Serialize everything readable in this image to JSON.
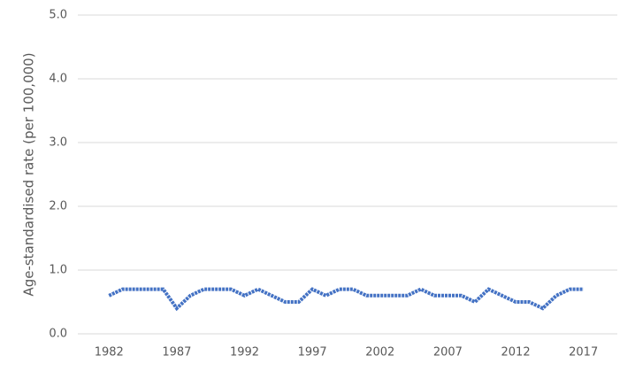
{
  "chart_data": {
    "type": "line",
    "y_label": "Age-standardised rate (per 100,000)",
    "x": [
      1982,
      1983,
      1984,
      1985,
      1986,
      1987,
      1988,
      1989,
      1990,
      1991,
      1992,
      1993,
      1994,
      1995,
      1996,
      1997,
      1998,
      1999,
      2000,
      2001,
      2002,
      2003,
      2004,
      2005,
      2006,
      2007,
      2008,
      2009,
      2010,
      2011,
      2012,
      2013,
      2014,
      2015,
      2016,
      2017
    ],
    "series": [
      {
        "color": "#4472c4",
        "values": [
          0.6,
          0.7,
          0.7,
          0.7,
          0.7,
          0.4,
          0.6,
          0.7,
          0.7,
          0.7,
          0.6,
          0.7,
          0.6,
          0.5,
          0.5,
          0.7,
          0.6,
          0.7,
          0.7,
          0.6,
          0.6,
          0.6,
          0.6,
          0.7,
          0.6,
          0.6,
          0.6,
          0.5,
          0.7,
          0.6,
          0.5,
          0.5,
          0.4,
          0.6,
          0.7,
          0.7
        ]
      }
    ],
    "xlim": [
      1979.7,
      2019.5
    ],
    "xticks": [
      1982,
      1987,
      1992,
      1997,
      2002,
      2007,
      2012,
      2017
    ],
    "ylim": [
      0,
      5
    ],
    "yticks": [
      {
        "value": 0,
        "label": "0.0"
      },
      {
        "value": 1,
        "label": "1.0"
      },
      {
        "value": 2,
        "label": "2.0"
      },
      {
        "value": 3,
        "label": "3.0"
      },
      {
        "value": 4,
        "label": "4.0"
      },
      {
        "value": 5,
        "label": "5.0"
      }
    ],
    "grid": true
  }
}
